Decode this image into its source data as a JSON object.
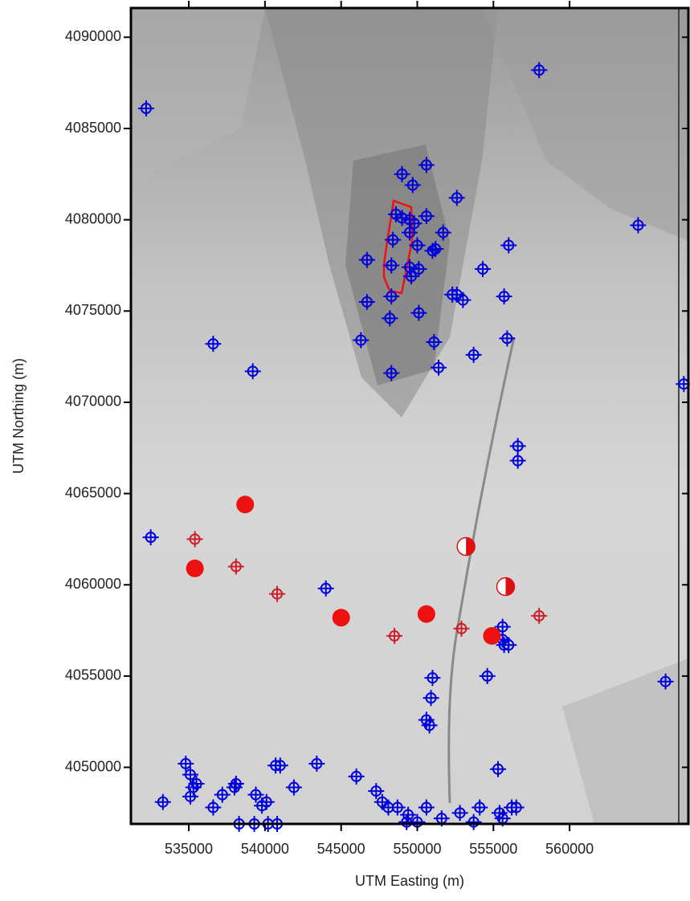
{
  "chart_data": {
    "type": "scatter",
    "x_label": "UTM Easting (m)",
    "y_label": "UTM Northing (m)",
    "xlim": [
      531200,
      567800
    ],
    "ylim": [
      4046900,
      4091600
    ],
    "xticks": [
      535000,
      540000,
      545000,
      550000,
      555000,
      560000
    ],
    "yticks": [
      4050000,
      4055000,
      4060000,
      4065000,
      4070000,
      4075000,
      4080000,
      4085000,
      4090000
    ],
    "series": [
      {
        "color": "#0000dd",
        "marker": "crosshair",
        "x": [
          532200,
          558000,
          536600,
          539200,
          532500,
          544000,
          564500,
          567500,
          566300,
          549000,
          550600,
          549700,
          552600,
          548600,
          549000,
          549500,
          549800,
          550600,
          549500,
          548400,
          550000,
          551000,
          551200,
          551700,
          546700,
          548300,
          549500,
          550100,
          549600,
          554300,
          556000,
          546700,
          548300,
          548200,
          550100,
          552300,
          552600,
          553000,
          555700,
          546300,
          551100,
          553700,
          555900,
          548300,
          551400,
          556600,
          556600,
          555600,
          555600,
          555700,
          556000,
          554600,
          551000,
          550900,
          550600,
          550800,
          555300,
          534800,
          535100,
          535300,
          535500,
          535100,
          533300,
          536600,
          537200,
          538000,
          538100,
          539400,
          539800,
          540100,
          540700,
          541000,
          541900,
          543400,
          546000,
          547300,
          547700,
          548100,
          548700,
          549400,
          549300,
          550000,
          550600,
          551600,
          552800,
          553700,
          554100,
          555400,
          555600,
          556200,
          556500,
          538300,
          539300,
          540200,
          540800
        ],
        "y": [
          4086100,
          4088200,
          4073200,
          4071700,
          4062600,
          4059800,
          4079700,
          4071000,
          4054700,
          4082500,
          4083000,
          4081900,
          4081200,
          4080300,
          4080100,
          4080000,
          4079800,
          4080200,
          4079300,
          4078900,
          4078600,
          4078300,
          4078400,
          4079300,
          4077800,
          4077500,
          4077400,
          4077300,
          4076900,
          4077300,
          4078600,
          4075500,
          4075800,
          4074600,
          4074900,
          4075900,
          4075900,
          4075600,
          4075800,
          4073400,
          4073300,
          4072600,
          4073500,
          4071600,
          4071900,
          4067600,
          4066800,
          4057700,
          4057000,
          4056700,
          4056700,
          4055000,
          4054900,
          4053800,
          4052600,
          4052300,
          4049900,
          4050200,
          4049600,
          4048900,
          4049100,
          4048400,
          4048100,
          4047800,
          4048500,
          4048900,
          4049100,
          4048500,
          4047900,
          4048100,
          4050100,
          4050100,
          4048900,
          4050200,
          4049500,
          4048700,
          4048100,
          4047800,
          4047800,
          4047400,
          4047000,
          4047000,
          4047800,
          4047200,
          4047500,
          4047000,
          4047800,
          4047500,
          4047200,
          4047800,
          4047800,
          4046900,
          4046900,
          4046900,
          4046900
        ]
      },
      {
        "color": "#cc1f2a",
        "marker": "crosshair",
        "x": [
          535400,
          538100,
          540800,
          548500,
          552900,
          558000
        ],
        "y": [
          4062500,
          4061000,
          4059500,
          4057200,
          4057600,
          4058300
        ]
      },
      {
        "color": "#ee1111",
        "marker": "filled-circle",
        "x": [
          538700,
          535400,
          545000,
          550600,
          554900
        ],
        "y": [
          4064400,
          4060900,
          4058200,
          4058400,
          4057200
        ]
      },
      {
        "color": "#dd1111",
        "marker": "half-circle",
        "x": [
          553200,
          555800
        ],
        "y": [
          4062100,
          4059900
        ]
      }
    ]
  }
}
